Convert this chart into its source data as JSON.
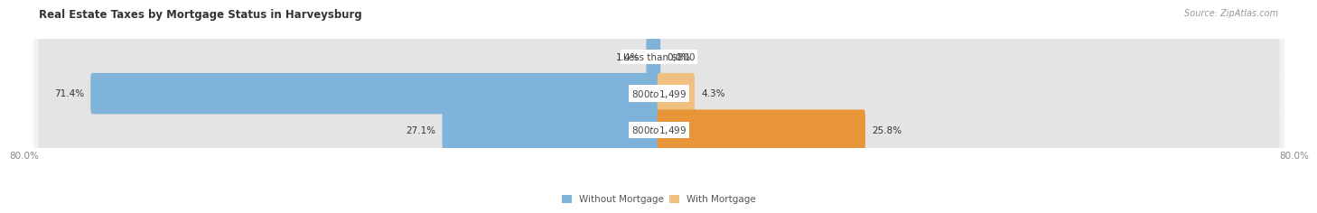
{
  "title": "Real Estate Taxes by Mortgage Status in Harveysburg",
  "source": "Source: ZipAtlas.com",
  "rows": [
    {
      "label": "Less than $800",
      "without_mortgage": 1.4,
      "with_mortgage": 0.0
    },
    {
      "label": "$800 to $1,499",
      "without_mortgage": 71.4,
      "with_mortgage": 4.3
    },
    {
      "label": "$800 to $1,499",
      "without_mortgage": 27.1,
      "with_mortgage": 25.8
    }
  ],
  "x_min": -80.0,
  "x_max": 80.0,
  "x_left_label": "80.0%",
  "x_right_label": "80.0%",
  "color_without": "#7fb3d9",
  "color_with": "#f0c080",
  "color_with_row3": "#e8953a",
  "bar_bg_color": "#e4e4e4",
  "row_bg_color": "#f2f2f2",
  "row_bg_border": "#dcdcdc",
  "title_fontsize": 8.5,
  "label_fontsize": 7.5,
  "pct_fontsize": 7.5,
  "tick_fontsize": 7.5,
  "source_fontsize": 7,
  "legend_fontsize": 7.5
}
